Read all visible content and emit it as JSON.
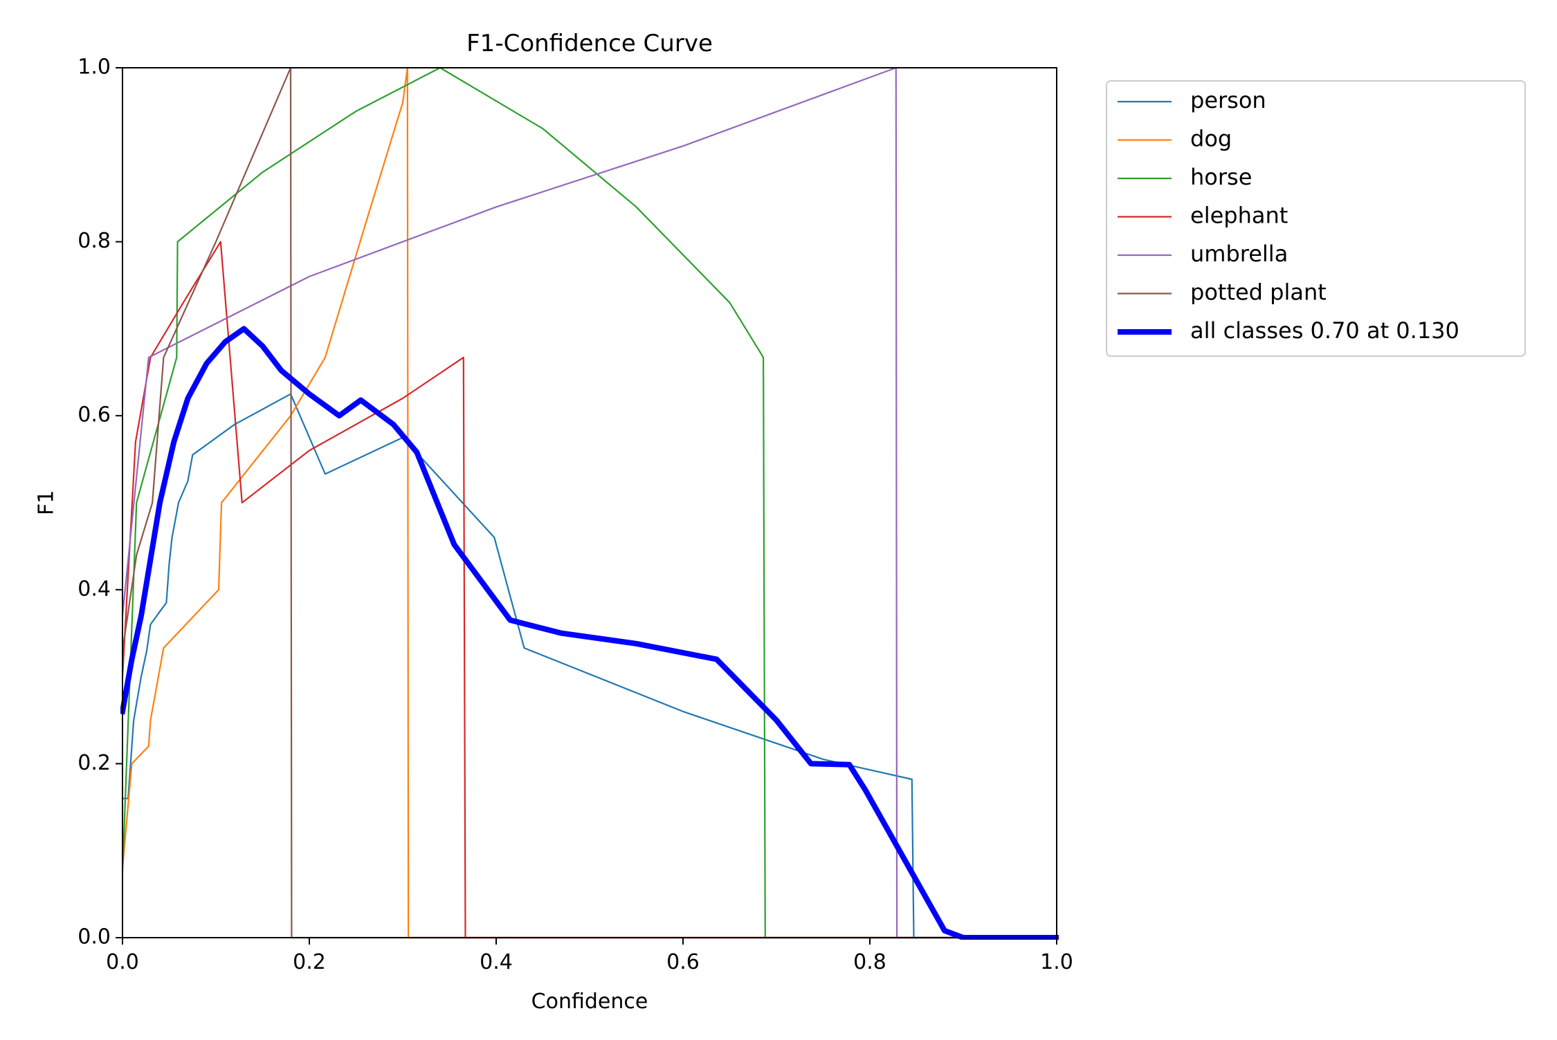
{
  "chart_data": {
    "type": "line",
    "title": "F1-Confidence Curve",
    "xlabel": "Confidence",
    "ylabel": "F1",
    "xlim": [
      0.0,
      1.0
    ],
    "ylim": [
      0.0,
      1.0
    ],
    "xticks": [
      "0.0",
      "0.2",
      "0.4",
      "0.6",
      "0.8",
      "1.0"
    ],
    "yticks": [
      "0.0",
      "0.2",
      "0.4",
      "0.6",
      "0.8",
      "1.0"
    ],
    "grid": false,
    "legend_position": "outside-top-right",
    "series": [
      {
        "name": "person",
        "color": "#1f77b4",
        "width": "thin",
        "points": [
          [
            0.0,
            0.16
          ],
          [
            0.006,
            0.16
          ],
          [
            0.012,
            0.25
          ],
          [
            0.02,
            0.3
          ],
          [
            0.026,
            0.33
          ],
          [
            0.03,
            0.36
          ],
          [
            0.04,
            0.375
          ],
          [
            0.047,
            0.385
          ],
          [
            0.05,
            0.43
          ],
          [
            0.053,
            0.46
          ],
          [
            0.06,
            0.5
          ],
          [
            0.07,
            0.525
          ],
          [
            0.075,
            0.555
          ],
          [
            0.12,
            0.59
          ],
          [
            0.18,
            0.625
          ],
          [
            0.217,
            0.533
          ],
          [
            0.3,
            0.575
          ],
          [
            0.398,
            0.46
          ],
          [
            0.43,
            0.333
          ],
          [
            0.6,
            0.26
          ],
          [
            0.75,
            0.205
          ],
          [
            0.845,
            0.182
          ],
          [
            0.847,
            0.0
          ],
          [
            1.0,
            0.0
          ]
        ]
      },
      {
        "name": "dog",
        "color": "#ff7f0e",
        "width": "thin",
        "points": [
          [
            0.0,
            0.08
          ],
          [
            0.01,
            0.2
          ],
          [
            0.028,
            0.22
          ],
          [
            0.03,
            0.25
          ],
          [
            0.044,
            0.333
          ],
          [
            0.103,
            0.4
          ],
          [
            0.106,
            0.5
          ],
          [
            0.18,
            0.6
          ],
          [
            0.217,
            0.667
          ],
          [
            0.26,
            0.82
          ],
          [
            0.3,
            0.96
          ],
          [
            0.305,
            1.0
          ],
          [
            0.306,
            0.0
          ],
          [
            1.0,
            0.0
          ]
        ]
      },
      {
        "name": "horse",
        "color": "#2ca02c",
        "width": "thin",
        "points": [
          [
            0.0,
            0.075
          ],
          [
            0.015,
            0.5
          ],
          [
            0.058,
            0.667
          ],
          [
            0.059,
            0.8
          ],
          [
            0.15,
            0.88
          ],
          [
            0.25,
            0.95
          ],
          [
            0.34,
            1.0
          ],
          [
            0.45,
            0.93
          ],
          [
            0.55,
            0.84
          ],
          [
            0.65,
            0.73
          ],
          [
            0.686,
            0.667
          ],
          [
            0.688,
            0.0
          ],
          [
            1.0,
            0.0
          ]
        ]
      },
      {
        "name": "elephant",
        "color": "#d62728",
        "width": "thin",
        "points": [
          [
            0.0,
            0.3
          ],
          [
            0.014,
            0.57
          ],
          [
            0.03,
            0.667
          ],
          [
            0.065,
            0.73
          ],
          [
            0.105,
            0.8
          ],
          [
            0.128,
            0.5
          ],
          [
            0.2,
            0.56
          ],
          [
            0.3,
            0.62
          ],
          [
            0.365,
            0.667
          ],
          [
            0.367,
            0.0
          ],
          [
            1.0,
            0.0
          ]
        ]
      },
      {
        "name": "umbrella",
        "color": "#9467bd",
        "width": "thin",
        "points": [
          [
            0.0,
            0.37
          ],
          [
            0.028,
            0.667
          ],
          [
            0.2,
            0.76
          ],
          [
            0.4,
            0.84
          ],
          [
            0.6,
            0.91
          ],
          [
            0.828,
            1.0
          ],
          [
            0.829,
            0.0
          ],
          [
            1.0,
            0.0
          ]
        ]
      },
      {
        "name": "potted plant",
        "color": "#8c564b",
        "width": "thin",
        "points": [
          [
            0.0,
            0.33
          ],
          [
            0.015,
            0.44
          ],
          [
            0.032,
            0.5
          ],
          [
            0.044,
            0.667
          ],
          [
            0.1,
            0.8
          ],
          [
            0.14,
            0.9
          ],
          [
            0.18,
            1.0
          ],
          [
            0.181,
            0.0
          ],
          [
            1.0,
            0.0
          ]
        ]
      },
      {
        "name": "all classes 0.70 at 0.130",
        "color": "#0000ff",
        "width": "thick",
        "points": [
          [
            0.0,
            0.26
          ],
          [
            0.01,
            0.32
          ],
          [
            0.02,
            0.37
          ],
          [
            0.04,
            0.5
          ],
          [
            0.055,
            0.57
          ],
          [
            0.07,
            0.62
          ],
          [
            0.09,
            0.66
          ],
          [
            0.11,
            0.685
          ],
          [
            0.13,
            0.7
          ],
          [
            0.15,
            0.68
          ],
          [
            0.17,
            0.652
          ],
          [
            0.2,
            0.625
          ],
          [
            0.232,
            0.6
          ],
          [
            0.255,
            0.618
          ],
          [
            0.29,
            0.59
          ],
          [
            0.315,
            0.558
          ],
          [
            0.355,
            0.452
          ],
          [
            0.415,
            0.365
          ],
          [
            0.47,
            0.35
          ],
          [
            0.55,
            0.338
          ],
          [
            0.636,
            0.32
          ],
          [
            0.7,
            0.25
          ],
          [
            0.737,
            0.2
          ],
          [
            0.778,
            0.199
          ],
          [
            0.795,
            0.17
          ],
          [
            0.88,
            0.008
          ],
          [
            0.9,
            0.0
          ],
          [
            1.0,
            0.0
          ]
        ]
      }
    ]
  }
}
